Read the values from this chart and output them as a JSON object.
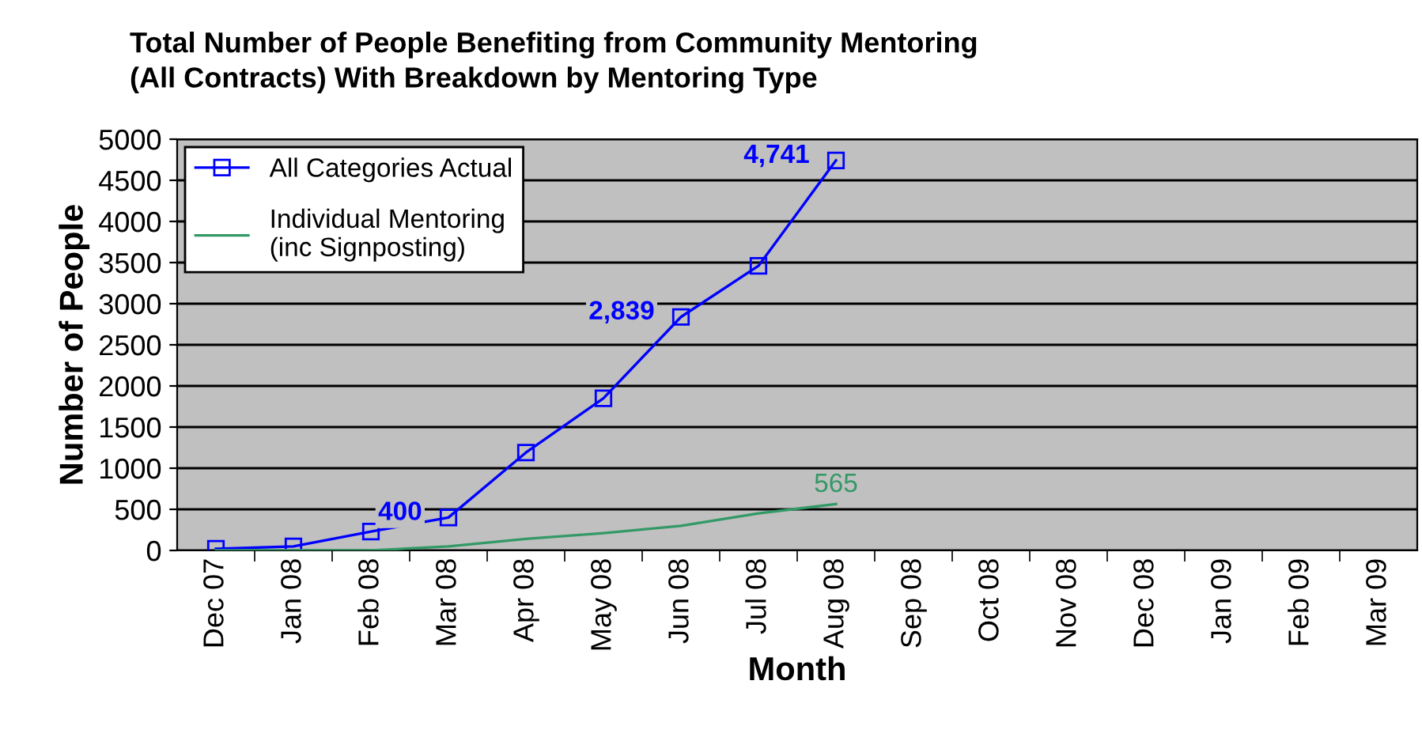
{
  "chart_data": {
    "type": "line",
    "title": "Total Number of People Benefiting from Community Mentoring\n(All Contracts) With Breakdown by Mentoring Type",
    "xlabel": "Month",
    "ylabel": "Number of People",
    "categories": [
      "Dec 07",
      "Jan 08",
      "Feb 08",
      "Mar 08",
      "Apr 08",
      "May 08",
      "Jun 08",
      "Jul 08",
      "Aug 08",
      "Sep 08",
      "Oct 08",
      "Nov 08",
      "Dec 08",
      "Jan 09",
      "Feb 09",
      "Mar 09"
    ],
    "series": [
      {
        "name": "All Categories Actual",
        "color": "#0000ff",
        "marker": "square",
        "values": [
          20,
          50,
          230,
          400,
          1190,
          1850,
          2839,
          3460,
          4741,
          null,
          null,
          null,
          null,
          null,
          null,
          null
        ],
        "value_labels": [
          null,
          null,
          null,
          "400",
          null,
          null,
          "2,839",
          null,
          "4,741",
          null,
          null,
          null,
          null,
          null,
          null,
          null
        ]
      },
      {
        "name": "Individual Mentoring\n(inc Signposting)",
        "color": "#339966",
        "marker": "none",
        "values": [
          0,
          0,
          0,
          50,
          140,
          210,
          300,
          450,
          565,
          null,
          null,
          null,
          null,
          null,
          null,
          null
        ],
        "value_labels": [
          null,
          null,
          null,
          null,
          null,
          null,
          null,
          null,
          "565",
          null,
          null,
          null,
          null,
          null,
          null,
          null
        ]
      }
    ],
    "ylim": [
      0,
      5000
    ],
    "yticks": [
      0,
      500,
      1000,
      1500,
      2000,
      2500,
      3000,
      3500,
      4000,
      4500,
      5000
    ],
    "grid": "y",
    "legend": "top left"
  }
}
